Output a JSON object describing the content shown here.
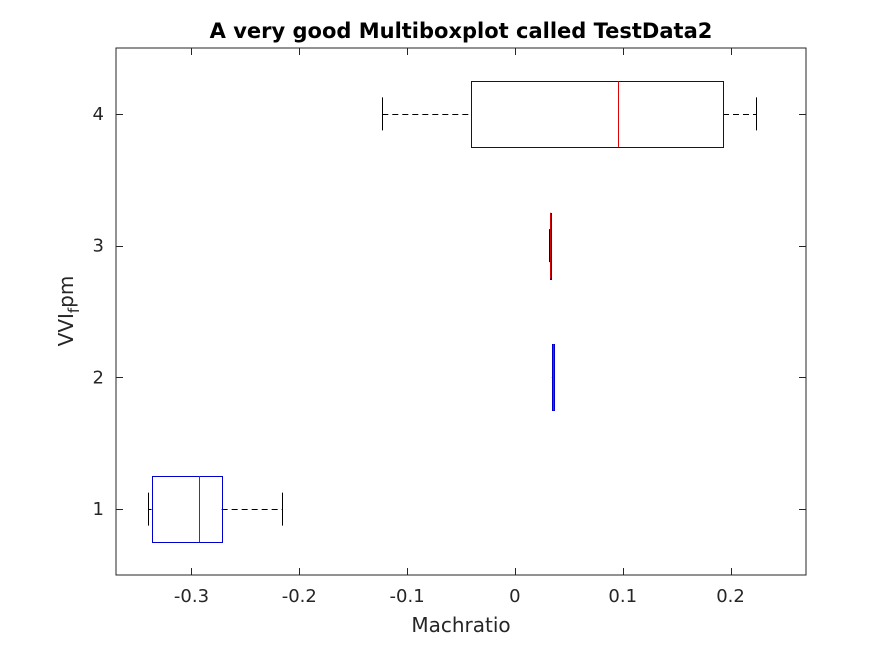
{
  "chart_data": {
    "type": "boxplot",
    "orientation": "horizontal",
    "title": "A very good Multiboxplot called TestData2",
    "xlabel": "Machratio",
    "ylabel": {
      "base": "VVI",
      "subscript": "f",
      "suffix": "pm"
    },
    "xlim": [
      -0.37,
      0.27
    ],
    "ylim": [
      0.5,
      4.5
    ],
    "xticks": [
      -0.3,
      -0.2,
      -0.1,
      0,
      0.1,
      0.2
    ],
    "xtick_labels": [
      "-0.3",
      "-0.2",
      "-0.1",
      "0",
      "0.1",
      "0.2"
    ],
    "yticks": [
      1,
      2,
      3,
      4
    ],
    "ytick_labels": [
      "1",
      "2",
      "3",
      "4"
    ],
    "grid": false,
    "colors": {
      "box": "#0000cc",
      "median": "#dd0000",
      "whisker": "#000000"
    },
    "boxes": [
      {
        "position": 1,
        "whisker_low": -0.34,
        "q1": -0.337,
        "median": -0.293,
        "q3": -0.272,
        "whisker_high": -0.216
      },
      {
        "position": 2,
        "whisker_low": 0.034,
        "q1": 0.034,
        "median": 0.035,
        "q3": 0.0355,
        "whisker_high": 0.0355
      },
      {
        "position": 3,
        "whisker_low": 0.032,
        "q1": 0.0325,
        "median": 0.033,
        "q3": 0.0335,
        "whisker_high": 0.0335
      },
      {
        "position": 4,
        "whisker_low": -0.123,
        "q1": -0.041,
        "median": 0.096,
        "q3": 0.193,
        "whisker_high": 0.224
      }
    ]
  }
}
